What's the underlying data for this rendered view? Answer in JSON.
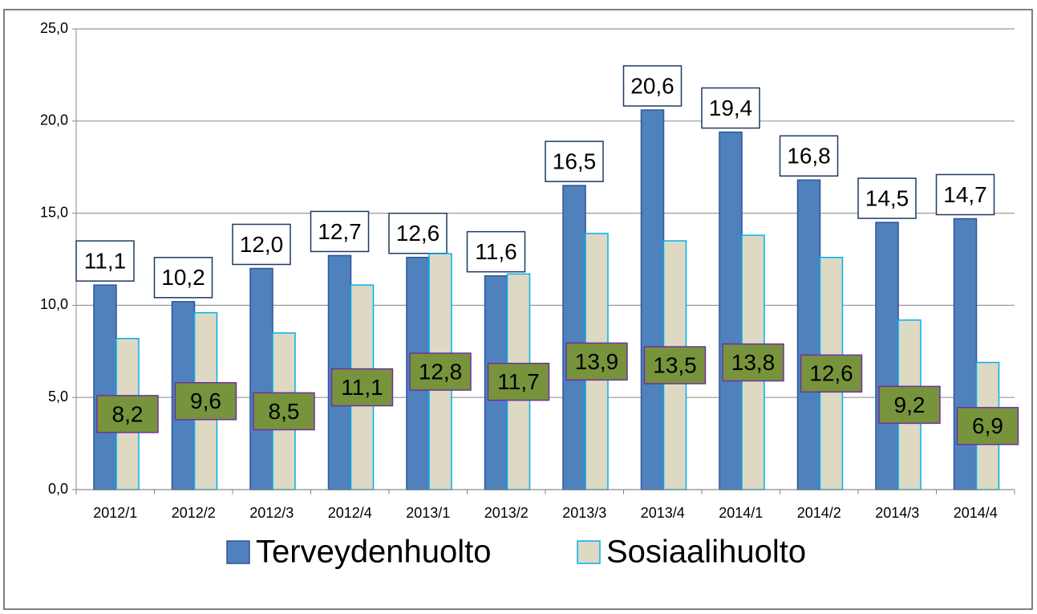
{
  "chart_data": {
    "type": "bar",
    "categories": [
      "2012/1",
      "2012/2",
      "2012/3",
      "2012/4",
      "2013/1",
      "2013/2",
      "2013/3",
      "2013/4",
      "2014/1",
      "2014/2",
      "2014/3",
      "2014/4"
    ],
    "series": [
      {
        "name": "Terveydenhuolto",
        "color": "#4f81bd",
        "values": [
          11.1,
          10.2,
          12.0,
          12.7,
          12.6,
          11.6,
          16.5,
          20.6,
          19.4,
          16.8,
          14.5,
          14.7
        ],
        "value_labels": [
          "11,1",
          "10,2",
          "12,0",
          "12,7",
          "12,6",
          "11,6",
          "16,5",
          "20,6",
          "19,4",
          "16,8",
          "14,5",
          "14,7"
        ]
      },
      {
        "name": "Sosiaalihuolto",
        "color": "#ddd9c3",
        "values": [
          8.2,
          9.6,
          8.5,
          11.1,
          12.8,
          11.7,
          13.9,
          13.5,
          13.8,
          12.6,
          9.2,
          6.9
        ],
        "value_labels": [
          "8,2",
          "9,6",
          "8,5",
          "11,1",
          "12,8",
          "11,7",
          "13,9",
          "13,5",
          "13,8",
          "12,6",
          "9,2",
          "6,9"
        ]
      }
    ],
    "ylim": [
      0,
      25
    ],
    "yticks": [
      {
        "value": 0,
        "label": "0,0"
      },
      {
        "value": 5,
        "label": "5,0"
      },
      {
        "value": 10,
        "label": "10,0"
      },
      {
        "value": 15,
        "label": "15,0"
      },
      {
        "value": 20,
        "label": "20,0"
      },
      {
        "value": 25,
        "label": "25,0"
      }
    ],
    "grid": true,
    "legend": "bottom"
  }
}
